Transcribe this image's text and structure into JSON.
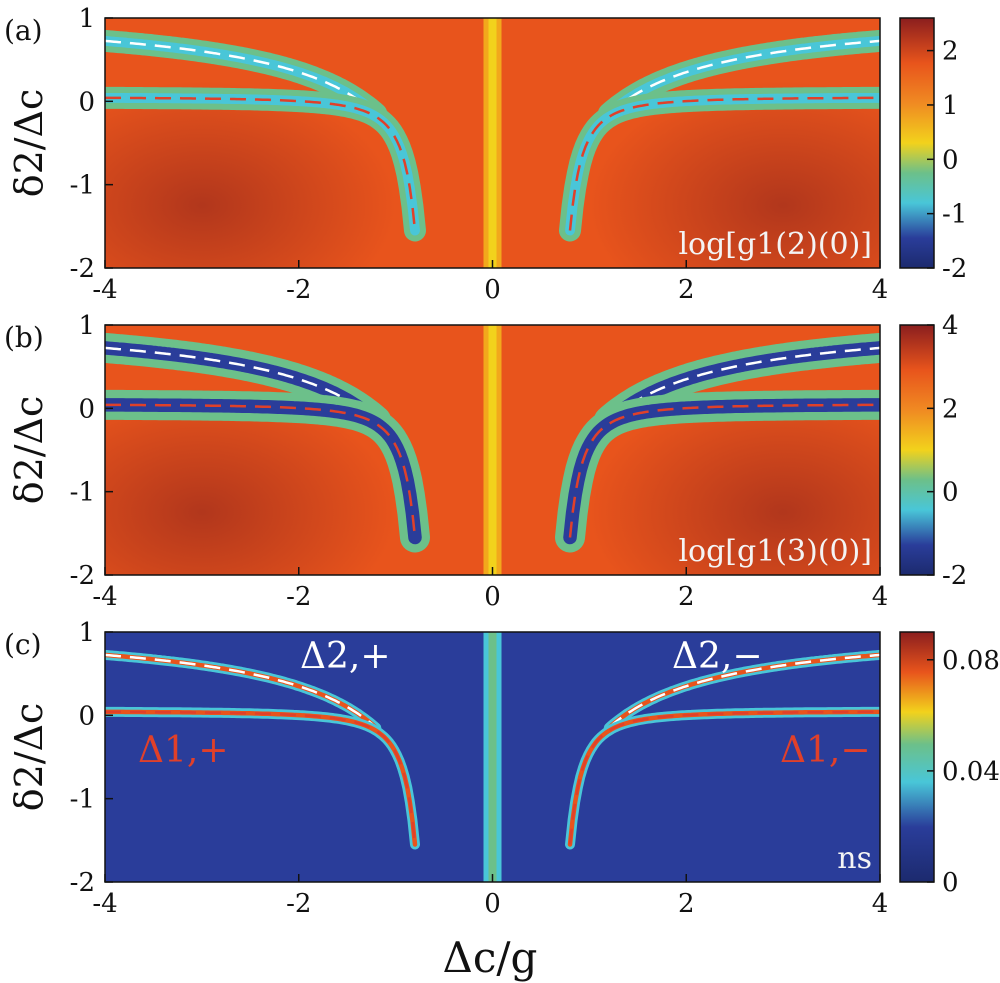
{
  "x_axis_label": "Δc/g",
  "y_axis_label": "δ2/Δc",
  "colors": {
    "background": "#ffffff",
    "map_high": "#8b1e1e",
    "map_orange": "#e8541c",
    "map_yellow": "#f2d21c",
    "map_green": "#6cc08a",
    "map_cyan": "#49c6d8",
    "map_blue": "#2a3d9a",
    "map_low": "#1c2a6e",
    "dashed_white": "#ffffff",
    "dashed_red": "#e0402a"
  },
  "chart_data": [
    {
      "type": "heatmap",
      "panel_label": "(a)",
      "inset_label": "log[g1(2)(0)]",
      "xlim": [
        -4,
        4
      ],
      "ylim": [
        -2,
        1
      ],
      "x_ticks": [
        "-4",
        "-2",
        "0",
        "2",
        "4"
      ],
      "y_ticks": [
        "1",
        "0",
        "-1",
        "-2"
      ],
      "colorbar": {
        "ticks": [
          "2",
          "1",
          "0",
          "-1",
          "-2"
        ],
        "range": [
          -2,
          2.6
        ]
      },
      "dashed_curves": [
        "Δ2,±",
        "Δ1,±"
      ]
    },
    {
      "type": "heatmap",
      "panel_label": "(b)",
      "inset_label": "log[g1(3)(0)]",
      "xlim": [
        -4,
        4
      ],
      "ylim": [
        -2,
        1
      ],
      "x_ticks": [
        "-4",
        "-2",
        "0",
        "2",
        "4"
      ],
      "y_ticks": [
        "1",
        "0",
        "-1",
        "-2"
      ],
      "colorbar": {
        "ticks": [
          "4",
          "2",
          "0",
          "-2"
        ],
        "range": [
          -2,
          4
        ]
      },
      "dashed_curves": [
        "Δ2,±",
        "Δ1,±"
      ]
    },
    {
      "type": "heatmap",
      "panel_label": "(c)",
      "inset_label": "ns",
      "xlim": [
        -4,
        4
      ],
      "ylim": [
        -2,
        1
      ],
      "x_ticks": [
        "-4",
        "-2",
        "0",
        "2",
        "4"
      ],
      "y_ticks": [
        "1",
        "0",
        "-1",
        "-2"
      ],
      "colorbar": {
        "ticks": [
          "0.08",
          "0.04",
          "0"
        ],
        "range": [
          0,
          0.09
        ]
      },
      "annotations": [
        "Δ2,+",
        "Δ2,−",
        "Δ1,+",
        "Δ1,−"
      ],
      "dashed_curves": [
        "Δ2,±",
        "Δ1,±"
      ]
    }
  ]
}
